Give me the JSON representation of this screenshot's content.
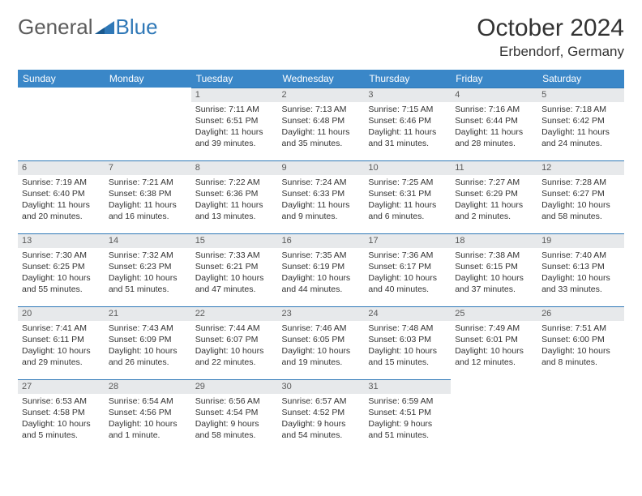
{
  "logo": {
    "general": "General",
    "blue": "Blue",
    "tri_color": "#2f78b7"
  },
  "title": "October 2024",
  "location": "Erbendorf, Germany",
  "colors": {
    "header_bg": "#3a87c8",
    "header_fg": "#ffffff",
    "daynum_bg": "#e7e9eb",
    "daynum_fg": "#5a5a5a",
    "daynum_border": "#2f78b7",
    "text": "#333333",
    "background": "#ffffff"
  },
  "day_labels": [
    "Sunday",
    "Monday",
    "Tuesday",
    "Wednesday",
    "Thursday",
    "Friday",
    "Saturday"
  ],
  "weeks": [
    [
      {
        "empty": true
      },
      {
        "empty": true
      },
      {
        "n": "1",
        "sunrise": "7:11 AM",
        "sunset": "6:51 PM",
        "day_h": "11",
        "day_m": "39"
      },
      {
        "n": "2",
        "sunrise": "7:13 AM",
        "sunset": "6:48 PM",
        "day_h": "11",
        "day_m": "35"
      },
      {
        "n": "3",
        "sunrise": "7:15 AM",
        "sunset": "6:46 PM",
        "day_h": "11",
        "day_m": "31"
      },
      {
        "n": "4",
        "sunrise": "7:16 AM",
        "sunset": "6:44 PM",
        "day_h": "11",
        "day_m": "28"
      },
      {
        "n": "5",
        "sunrise": "7:18 AM",
        "sunset": "6:42 PM",
        "day_h": "11",
        "day_m": "24"
      }
    ],
    [
      {
        "n": "6",
        "sunrise": "7:19 AM",
        "sunset": "6:40 PM",
        "day_h": "11",
        "day_m": "20"
      },
      {
        "n": "7",
        "sunrise": "7:21 AM",
        "sunset": "6:38 PM",
        "day_h": "11",
        "day_m": "16"
      },
      {
        "n": "8",
        "sunrise": "7:22 AM",
        "sunset": "6:36 PM",
        "day_h": "11",
        "day_m": "13"
      },
      {
        "n": "9",
        "sunrise": "7:24 AM",
        "sunset": "6:33 PM",
        "day_h": "11",
        "day_m": "9"
      },
      {
        "n": "10",
        "sunrise": "7:25 AM",
        "sunset": "6:31 PM",
        "day_h": "11",
        "day_m": "6"
      },
      {
        "n": "11",
        "sunrise": "7:27 AM",
        "sunset": "6:29 PM",
        "day_h": "11",
        "day_m": "2"
      },
      {
        "n": "12",
        "sunrise": "7:28 AM",
        "sunset": "6:27 PM",
        "day_h": "10",
        "day_m": "58"
      }
    ],
    [
      {
        "n": "13",
        "sunrise": "7:30 AM",
        "sunset": "6:25 PM",
        "day_h": "10",
        "day_m": "55"
      },
      {
        "n": "14",
        "sunrise": "7:32 AM",
        "sunset": "6:23 PM",
        "day_h": "10",
        "day_m": "51"
      },
      {
        "n": "15",
        "sunrise": "7:33 AM",
        "sunset": "6:21 PM",
        "day_h": "10",
        "day_m": "47"
      },
      {
        "n": "16",
        "sunrise": "7:35 AM",
        "sunset": "6:19 PM",
        "day_h": "10",
        "day_m": "44"
      },
      {
        "n": "17",
        "sunrise": "7:36 AM",
        "sunset": "6:17 PM",
        "day_h": "10",
        "day_m": "40"
      },
      {
        "n": "18",
        "sunrise": "7:38 AM",
        "sunset": "6:15 PM",
        "day_h": "10",
        "day_m": "37"
      },
      {
        "n": "19",
        "sunrise": "7:40 AM",
        "sunset": "6:13 PM",
        "day_h": "10",
        "day_m": "33"
      }
    ],
    [
      {
        "n": "20",
        "sunrise": "7:41 AM",
        "sunset": "6:11 PM",
        "day_h": "10",
        "day_m": "29"
      },
      {
        "n": "21",
        "sunrise": "7:43 AM",
        "sunset": "6:09 PM",
        "day_h": "10",
        "day_m": "26"
      },
      {
        "n": "22",
        "sunrise": "7:44 AM",
        "sunset": "6:07 PM",
        "day_h": "10",
        "day_m": "22"
      },
      {
        "n": "23",
        "sunrise": "7:46 AM",
        "sunset": "6:05 PM",
        "day_h": "10",
        "day_m": "19"
      },
      {
        "n": "24",
        "sunrise": "7:48 AM",
        "sunset": "6:03 PM",
        "day_h": "10",
        "day_m": "15"
      },
      {
        "n": "25",
        "sunrise": "7:49 AM",
        "sunset": "6:01 PM",
        "day_h": "10",
        "day_m": "12"
      },
      {
        "n": "26",
        "sunrise": "7:51 AM",
        "sunset": "6:00 PM",
        "day_h": "10",
        "day_m": "8"
      }
    ],
    [
      {
        "n": "27",
        "sunrise": "6:53 AM",
        "sunset": "4:58 PM",
        "day_h": "10",
        "day_m": "5"
      },
      {
        "n": "28",
        "sunrise": "6:54 AM",
        "sunset": "4:56 PM",
        "day_h": "10",
        "day_m": "1"
      },
      {
        "n": "29",
        "sunrise": "6:56 AM",
        "sunset": "4:54 PM",
        "day_h": "9",
        "day_m": "58"
      },
      {
        "n": "30",
        "sunrise": "6:57 AM",
        "sunset": "4:52 PM",
        "day_h": "9",
        "day_m": "54"
      },
      {
        "n": "31",
        "sunrise": "6:59 AM",
        "sunset": "4:51 PM",
        "day_h": "9",
        "day_m": "51"
      },
      {
        "empty": true
      },
      {
        "empty": true
      }
    ]
  ]
}
